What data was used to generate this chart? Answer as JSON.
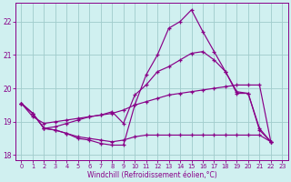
{
  "xlabel": "Windchill (Refroidissement éolien,°C)",
  "bg_color": "#d0f0f0",
  "grid_color": "#a0cccc",
  "line_color": "#880088",
  "xlim": [
    -0.5,
    23.5
  ],
  "ylim": [
    17.85,
    22.55
  ],
  "yticks": [
    18,
    19,
    20,
    21,
    22
  ],
  "xticks": [
    0,
    1,
    2,
    3,
    4,
    5,
    6,
    7,
    8,
    9,
    10,
    11,
    12,
    13,
    14,
    15,
    16,
    17,
    18,
    19,
    20,
    21,
    22,
    23
  ],
  "series1_x": [
    0,
    1,
    2,
    3,
    4,
    5,
    6,
    7,
    8,
    9,
    10,
    11,
    12,
    13,
    14,
    15,
    16,
    17,
    18,
    19,
    20,
    21,
    22
  ],
  "series1_y": [
    19.55,
    19.25,
    18.8,
    18.75,
    18.65,
    18.5,
    18.45,
    18.35,
    18.3,
    18.3,
    19.5,
    20.4,
    21.0,
    21.8,
    22.0,
    22.35,
    21.7,
    21.1,
    20.5,
    19.9,
    19.85,
    18.8,
    18.4
  ],
  "series2_x": [
    0,
    1,
    2,
    3,
    4,
    5,
    6,
    7,
    8,
    9,
    10,
    11,
    12,
    13,
    14,
    15,
    16,
    17,
    18,
    19,
    20,
    21,
    22
  ],
  "series2_y": [
    19.55,
    19.25,
    18.8,
    18.75,
    18.65,
    18.55,
    18.5,
    18.45,
    18.4,
    18.45,
    18.55,
    18.6,
    18.6,
    18.6,
    18.6,
    18.6,
    18.6,
    18.6,
    18.6,
    18.6,
    18.6,
    18.6,
    18.4
  ],
  "series3_x": [
    0,
    1,
    2,
    3,
    4,
    5,
    6,
    7,
    8,
    9,
    10,
    11,
    12,
    13,
    14,
    15,
    16,
    17,
    18,
    19,
    20,
    21,
    22
  ],
  "series3_y": [
    19.55,
    19.15,
    18.95,
    19.0,
    19.05,
    19.1,
    19.15,
    19.2,
    19.25,
    19.35,
    19.5,
    19.6,
    19.7,
    19.8,
    19.85,
    19.9,
    19.95,
    20.0,
    20.05,
    20.1,
    20.1,
    20.1,
    18.4
  ],
  "series4_x": [
    0,
    1,
    2,
    3,
    4,
    5,
    6,
    7,
    8,
    9,
    10,
    11,
    12,
    13,
    14,
    15,
    16,
    17,
    18,
    19,
    20,
    21,
    22
  ],
  "series4_y": [
    19.55,
    19.25,
    18.8,
    18.85,
    18.95,
    19.05,
    19.15,
    19.2,
    19.3,
    18.95,
    19.8,
    20.1,
    20.5,
    20.65,
    20.85,
    21.05,
    21.1,
    20.85,
    20.5,
    19.85,
    19.85,
    18.75,
    18.4
  ]
}
